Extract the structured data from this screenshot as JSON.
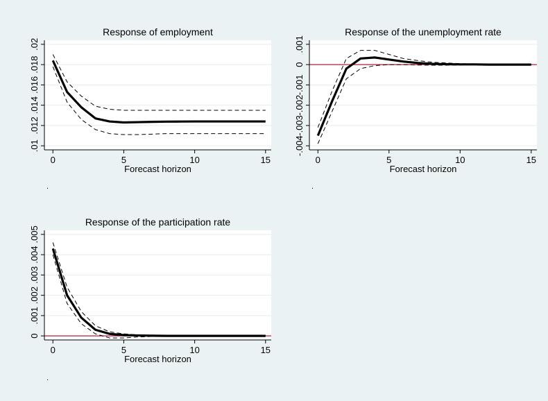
{
  "figure": {
    "background": "#eaf2f3"
  },
  "chart_data": [
    {
      "type": "line",
      "title": "Response of employment",
      "xlabel": "Forecast horizon",
      "ylabel": "",
      "x_ticks": [
        0,
        5,
        10,
        15
      ],
      "y_ticks": [
        ".01",
        ".012",
        ".014",
        ".016",
        ".018",
        ".02"
      ],
      "ylim": [
        0.0096,
        0.0204
      ],
      "xlim": [
        -0.6,
        15.4
      ],
      "zero_line": false,
      "grid": true,
      "legend": "none",
      "footnote": ".",
      "x": [
        0,
        1,
        2,
        3,
        4,
        5,
        6,
        7,
        8,
        9,
        10,
        11,
        12,
        13,
        14,
        15
      ],
      "series": [
        {
          "role": "estimate",
          "values": [
            0.0184,
            0.0153,
            0.0138,
            0.0127,
            0.0124,
            0.0123,
            0.01233,
            0.01236,
            0.01238,
            0.01239,
            0.0124,
            0.0124,
            0.0124,
            0.0124,
            0.0124,
            0.0124
          ]
        },
        {
          "role": "upper",
          "values": [
            0.019,
            0.0163,
            0.0149,
            0.0139,
            0.0136,
            0.0135,
            0.0135,
            0.0135,
            0.0135,
            0.0135,
            0.0135,
            0.0135,
            0.0135,
            0.0135,
            0.0135,
            0.0135
          ]
        },
        {
          "role": "lower",
          "values": [
            0.0178,
            0.0143,
            0.0126,
            0.0116,
            0.0112,
            0.0111,
            0.0111,
            0.01115,
            0.0112,
            0.0112,
            0.0112,
            0.0112,
            0.0112,
            0.0112,
            0.0112,
            0.0112
          ]
        }
      ]
    },
    {
      "type": "line",
      "title": "Response of the unemployment rate",
      "xlabel": "Forecast horizon",
      "ylabel": "",
      "x_ticks": [
        0,
        5,
        10,
        15
      ],
      "y_ticks": [
        "-.004",
        "-.003",
        "-.002",
        "-.001",
        "0",
        ".001"
      ],
      "ylim": [
        -0.0042,
        0.0012
      ],
      "xlim": [
        -0.6,
        15.4
      ],
      "zero_line": true,
      "grid": true,
      "legend": "none",
      "footnote": ".",
      "x": [
        0,
        1,
        2,
        3,
        4,
        5,
        6,
        7,
        8,
        9,
        10,
        11,
        12,
        13,
        14,
        15
      ],
      "series": [
        {
          "role": "estimate",
          "values": [
            -0.0035,
            -0.0018,
            -0.0002,
            0.0003,
            0.00035,
            0.00025,
            0.00015,
            8e-05,
            4e-05,
            2e-05,
            1e-05,
            1e-05,
            0,
            0,
            0,
            0
          ]
        },
        {
          "role": "upper",
          "values": [
            -0.0031,
            -0.0013,
            0.0003,
            0.0007,
            0.0007,
            0.0005,
            0.0003,
            0.0002,
            0.00012,
            8e-05,
            5e-05,
            3e-05,
            2e-05,
            1e-05,
            0,
            0
          ]
        },
        {
          "role": "lower",
          "values": [
            -0.0039,
            -0.0023,
            -0.0007,
            -0.0002,
            -5e-05,
            0,
            0,
            -2e-05,
            -3e-05,
            -3e-05,
            -2e-05,
            -1e-05,
            -1e-05,
            0,
            0,
            0
          ]
        }
      ]
    },
    {
      "type": "line",
      "title": "Response of the participation rate",
      "xlabel": "Forecast horizon",
      "ylabel": "",
      "x_ticks": [
        0,
        5,
        10,
        15
      ],
      "y_ticks": [
        "0",
        ".001",
        ".002",
        ".003",
        ".004",
        ".005"
      ],
      "ylim": [
        -0.0002,
        0.0052
      ],
      "xlim": [
        -0.6,
        15.4
      ],
      "zero_line": true,
      "grid": true,
      "legend": "none",
      "footnote": ".",
      "x": [
        0,
        1,
        2,
        3,
        4,
        5,
        6,
        7,
        8,
        9,
        10,
        11,
        12,
        13,
        14,
        15
      ],
      "series": [
        {
          "role": "estimate",
          "values": [
            0.0043,
            0.002,
            0.0009,
            0.0003,
            0.0001,
            4e-05,
            2e-05,
            1e-05,
            0,
            0,
            0,
            0,
            0,
            0,
            0,
            0
          ]
        },
        {
          "role": "upper",
          "values": [
            0.0046,
            0.0024,
            0.0012,
            0.0005,
            0.0002,
            0.0001,
            5e-05,
            3e-05,
            2e-05,
            1e-05,
            0,
            0,
            0,
            0,
            0,
            0
          ]
        },
        {
          "role": "lower",
          "values": [
            0.004,
            0.0016,
            0.0006,
            0.0001,
            -0.0001,
            -0.0001,
            -5e-05,
            -3e-05,
            -2e-05,
            -1e-05,
            0,
            0,
            0,
            0,
            0,
            0
          ]
        }
      ]
    }
  ]
}
